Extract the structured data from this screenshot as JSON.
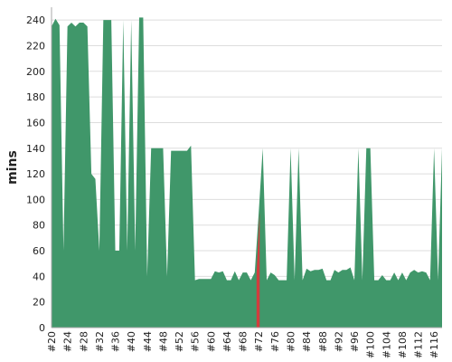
{
  "chart_data": {
    "type": "area",
    "ylabel": "mins",
    "xlabel": "",
    "ylim": [
      0,
      250
    ],
    "grid": true,
    "y_ticks": [
      0,
      20,
      40,
      60,
      80,
      100,
      120,
      140,
      160,
      180,
      200,
      220,
      240
    ],
    "x_tick_labels": [
      "#20",
      "#24",
      "#28",
      "#32",
      "#36",
      "#40",
      "#44",
      "#48",
      "#52",
      "#56",
      "#60",
      "#64",
      "#68",
      "#72",
      "#76",
      "#80",
      "#84",
      "#88",
      "#92",
      "#96",
      "#100",
      "#104",
      "#108",
      "#112",
      "#116"
    ],
    "highlight_build": 72,
    "colors": {
      "area": "#40976a",
      "highlight": "#d13d3d",
      "grid": "#dddddd",
      "axis": "#aaaaaa"
    },
    "series": [
      {
        "x": [
          20,
          21,
          22,
          23,
          24,
          25,
          26,
          27,
          28,
          29,
          30,
          31,
          32,
          33,
          34,
          35,
          36,
          37,
          38,
          39,
          40,
          41,
          42,
          43,
          44,
          45,
          46,
          47,
          48,
          49,
          50,
          51,
          52,
          53,
          54,
          55,
          56,
          57,
          58,
          59,
          60,
          61,
          62,
          63,
          64,
          65,
          66,
          67,
          68,
          69,
          70,
          71,
          72,
          73,
          74,
          75,
          76,
          77,
          78,
          79,
          80,
          81,
          82,
          83,
          84,
          85,
          86,
          87,
          88,
          89,
          90,
          91,
          92,
          93,
          94,
          95,
          96,
          97,
          98,
          99,
          100,
          101,
          102,
          103,
          104,
          105,
          106,
          107,
          108,
          109,
          110,
          111,
          112,
          113,
          114,
          115,
          116,
          117,
          118
        ],
        "values": [
          235,
          241,
          236,
          60,
          235,
          238,
          235,
          238,
          238,
          235,
          120,
          116,
          60,
          240,
          240,
          240,
          60,
          60,
          240,
          60,
          240,
          60,
          242,
          242,
          40,
          140,
          140,
          140,
          140,
          40,
          138,
          138,
          138,
          138,
          138,
          142,
          37,
          38,
          38,
          38,
          38,
          44,
          43,
          44,
          37,
          37,
          44,
          37,
          43,
          43,
          37,
          43,
          90,
          140,
          37,
          43,
          41,
          37,
          37,
          37,
          140,
          37,
          140,
          37,
          46,
          44,
          45,
          45,
          46,
          37,
          37,
          45,
          43,
          45,
          45,
          47,
          37,
          140,
          37,
          140,
          140,
          37,
          37,
          41,
          37,
          37,
          43,
          37,
          43,
          37,
          43,
          45,
          43,
          44,
          43,
          37,
          140,
          37,
          140
        ]
      }
    ]
  }
}
